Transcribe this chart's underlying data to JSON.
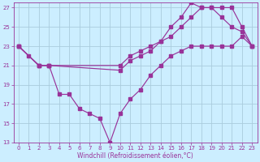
{
  "xlabel": "Windchill (Refroidissement éolien,°C)",
  "background_color": "#cceeff",
  "grid_color": "#aaccdd",
  "line_color": "#993399",
  "xlim": [
    -0.5,
    23.5
  ],
  "ylim": [
    13,
    27.5
  ],
  "yticks": [
    13,
    15,
    17,
    19,
    21,
    23,
    25,
    27
  ],
  "xticks": [
    0,
    1,
    2,
    3,
    4,
    5,
    6,
    7,
    8,
    9,
    10,
    11,
    12,
    13,
    14,
    15,
    16,
    17,
    18,
    19,
    20,
    21,
    22,
    23
  ],
  "line1_x": [
    0,
    2,
    3,
    10,
    11,
    12,
    13,
    14,
    15,
    16,
    17,
    18,
    19,
    20,
    21,
    22,
    23
  ],
  "line1_y": [
    23,
    21,
    21,
    21,
    22,
    22.5,
    23,
    23.5,
    24,
    25,
    26,
    27,
    27,
    26,
    25,
    24.5,
    23
  ],
  "line2_x": [
    0,
    2,
    3,
    10,
    11,
    12,
    13,
    14,
    15,
    16,
    17,
    18,
    19,
    20,
    21,
    22,
    23
  ],
  "line2_y": [
    23,
    21,
    21,
    20.5,
    21.5,
    22,
    22.5,
    23.5,
    25,
    26,
    27.5,
    27,
    27,
    27,
    27,
    25,
    23
  ],
  "line3_x": [
    0,
    1,
    2,
    3,
    4,
    5,
    6,
    7,
    8,
    9,
    10,
    11,
    12,
    13,
    14,
    15,
    16,
    17,
    18,
    19,
    20,
    21,
    22,
    23
  ],
  "line3_y": [
    23,
    22,
    21,
    21,
    18,
    18,
    16.5,
    16,
    15.5,
    13,
    16,
    17.5,
    18.5,
    20,
    21,
    22,
    22.5,
    23,
    23,
    23,
    23,
    23,
    24,
    23
  ]
}
